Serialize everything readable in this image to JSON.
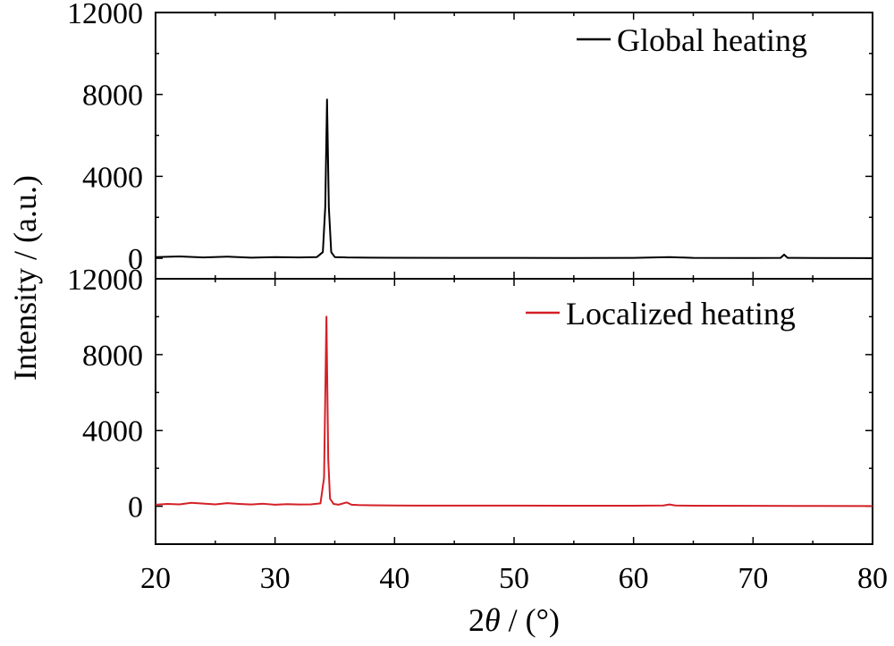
{
  "chart_data": [
    {
      "type": "line",
      "panel": "top",
      "x_range": [
        20,
        80
      ],
      "ylim": [
        -1000,
        12000
      ],
      "y_ticks": [
        0,
        4000,
        8000,
        12000
      ],
      "y_tick_labels": [
        "0",
        "4000",
        "8000",
        "12000"
      ],
      "series": [
        {
          "name": "Global heating",
          "color": "#000000",
          "x": [
            20,
            22,
            24,
            26,
            28,
            30,
            32,
            33.5,
            34.0,
            34.2,
            34.35,
            34.5,
            34.7,
            35.0,
            36,
            38,
            40,
            45,
            50,
            55,
            60,
            63,
            65,
            70,
            72.3,
            72.6,
            72.9,
            75,
            80
          ],
          "y": [
            60,
            90,
            40,
            80,
            30,
            60,
            40,
            60,
            300,
            2500,
            7750,
            2500,
            300,
            60,
            40,
            30,
            25,
            20,
            20,
            15,
            20,
            60,
            20,
            15,
            20,
            180,
            20,
            15,
            10
          ]
        }
      ]
    },
    {
      "type": "line",
      "panel": "bottom",
      "x_range": [
        20,
        80
      ],
      "ylim": [
        -2000,
        12000
      ],
      "y_ticks": [
        0,
        4000,
        8000,
        12000
      ],
      "y_tick_labels": [
        "0",
        "4000",
        "8000",
        "12000"
      ],
      "series": [
        {
          "name": "Localized heating",
          "color": "#d42027",
          "x": [
            20,
            21,
            22,
            23,
            24,
            25,
            26,
            27,
            28,
            29,
            30,
            31,
            32,
            33,
            33.8,
            34.1,
            34.3,
            34.45,
            34.6,
            34.9,
            35.3,
            36.0,
            36.4,
            37,
            38,
            40,
            42,
            45,
            50,
            55,
            60,
            62.5,
            63,
            63.5,
            65,
            70,
            75,
            80
          ],
          "y": [
            80,
            120,
            100,
            180,
            140,
            100,
            160,
            120,
            90,
            130,
            80,
            110,
            90,
            100,
            150,
            1500,
            10000,
            2500,
            400,
            120,
            80,
            200,
            80,
            60,
            50,
            40,
            35,
            30,
            30,
            25,
            25,
            40,
            90,
            40,
            25,
            20,
            15,
            10
          ]
        }
      ]
    }
  ],
  "axes": {
    "x_ticks": [
      20,
      30,
      40,
      50,
      60,
      70,
      80
    ],
    "x_tick_labels": [
      "20",
      "30",
      "40",
      "50",
      "60",
      "70",
      "80"
    ],
    "x_label_number": "2",
    "x_label_symbol": "θ",
    "x_label_unit": " / (°)",
    "y_label": "Intensity / (a.u.)"
  }
}
